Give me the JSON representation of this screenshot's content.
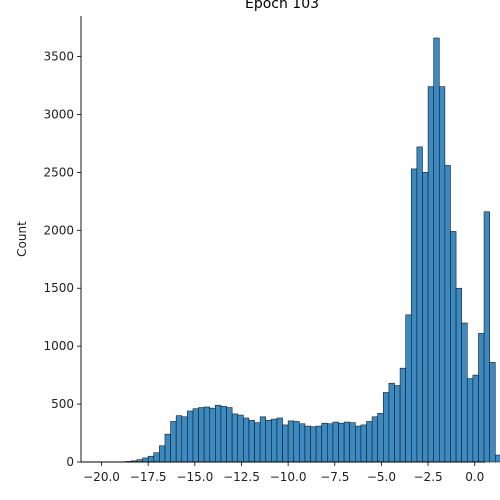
{
  "chart_data": {
    "type": "bar",
    "title": "Epoch 103",
    "xlabel": "",
    "ylabel": "Count",
    "xlim": [
      -21.1,
      0.55
    ],
    "ylim": [
      0,
      3850
    ],
    "bin_start": -19.0,
    "bin_width": 0.3,
    "values": [
      2,
      5,
      10,
      20,
      35,
      50,
      80,
      140,
      240,
      350,
      400,
      390,
      440,
      460,
      470,
      475,
      465,
      490,
      480,
      470,
      415,
      405,
      380,
      360,
      340,
      390,
      360,
      370,
      380,
      320,
      355,
      350,
      330,
      310,
      305,
      310,
      335,
      330,
      345,
      335,
      345,
      340,
      310,
      320,
      350,
      390,
      420,
      600,
      680,
      660,
      810,
      1270,
      2530,
      2720,
      2500,
      3240,
      3660,
      3240,
      2560,
      1990,
      1500,
      1200,
      720,
      750,
      1110,
      2160,
      860,
      60
    ],
    "bar_color": "#3b8bc2",
    "edge_color": "#1a1a1a",
    "x_ticks": [
      -20.0,
      -17.5,
      -15.0,
      -12.5,
      -10.0,
      -7.5,
      -5.0,
      -2.5,
      0.0
    ],
    "x_tick_labels": [
      "−20.0",
      "−17.5",
      "−15.0",
      "−12.5",
      "−10.0",
      "−7.5",
      "−5.0",
      "−2.5",
      "0.0"
    ],
    "y_ticks": [
      0,
      500,
      1000,
      1500,
      2000,
      2500,
      3000,
      3500
    ],
    "y_tick_labels": [
      "0",
      "500",
      "1000",
      "1500",
      "2000",
      "2500",
      "3000",
      "3500"
    ],
    "grid": false,
    "legend": "none"
  }
}
